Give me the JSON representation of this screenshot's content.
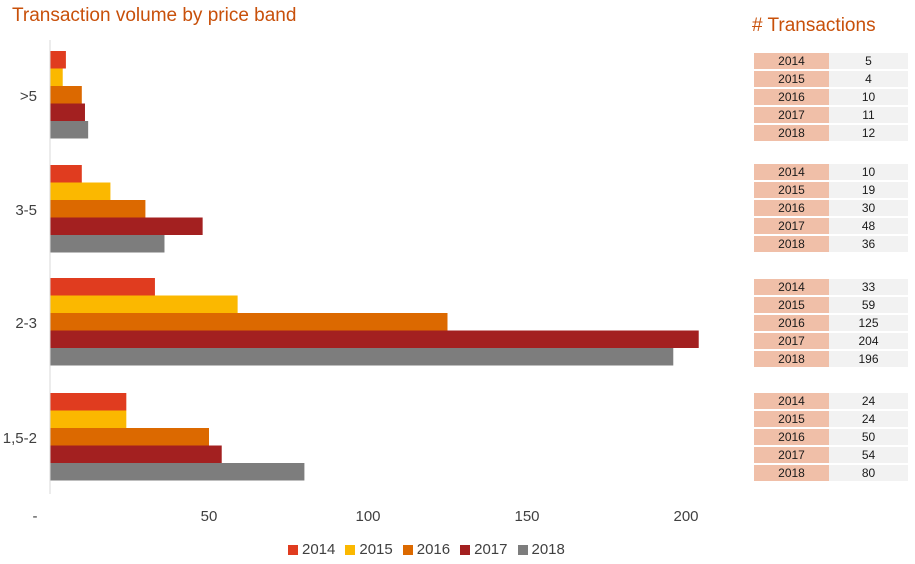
{
  "chart_data": {
    "type": "bar",
    "orientation": "horizontal",
    "title": "Transaction volume by price band",
    "categories": [
      ">5",
      "3-5",
      "2-3",
      "1,5-2"
    ],
    "series": [
      {
        "name": "2014",
        "color": "#e03c1f",
        "values": [
          5,
          10,
          33,
          24
        ]
      },
      {
        "name": "2015",
        "color": "#fbb800",
        "values": [
          4,
          19,
          59,
          24
        ]
      },
      {
        "name": "2016",
        "color": "#dc6900",
        "values": [
          10,
          30,
          125,
          50
        ]
      },
      {
        "name": "2017",
        "color": "#a32020",
        "values": [
          11,
          48,
          204,
          54
        ]
      },
      {
        "name": "2018",
        "color": "#7d7d7d",
        "values": [
          12,
          36,
          196,
          80
        ]
      }
    ],
    "x_ticks": [
      {
        "value": 0,
        "label": "-"
      },
      {
        "value": 50,
        "label": "50"
      },
      {
        "value": 100,
        "label": "100"
      },
      {
        "value": 150,
        "label": "150"
      },
      {
        "value": 200,
        "label": "200"
      }
    ],
    "xlim": [
      0,
      215
    ],
    "grid": false,
    "legend_position": "bottom"
  },
  "side_table": {
    "title": "# Transactions"
  }
}
